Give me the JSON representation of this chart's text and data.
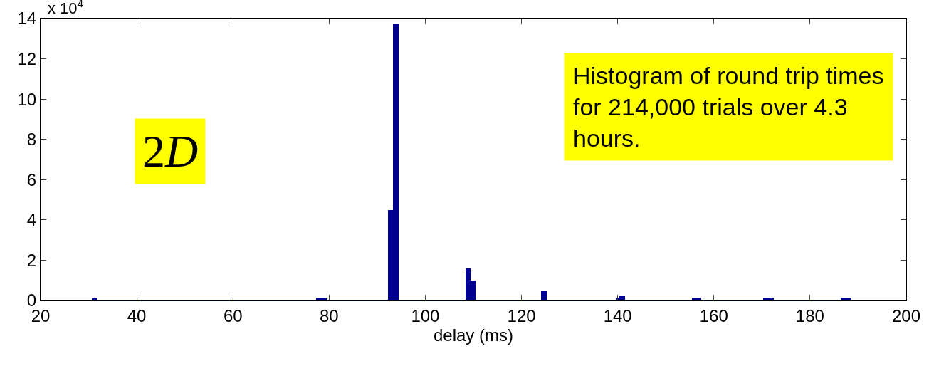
{
  "chart_data": {
    "type": "histogram",
    "xlabel": "delay (ms)",
    "color": "#000090",
    "bins": [
      30.7,
      31.7,
      77.3,
      79.5,
      92.3,
      93.3,
      94.4,
      108.3,
      109.4,
      110.5,
      124.0,
      125.3,
      139.6,
      140.3,
      141.6,
      155.4,
      157.4,
      170.3,
      172.5,
      186.4,
      188.6
    ],
    "values": [
      0.1,
      0,
      0.15,
      0,
      4.5,
      13.7,
      0,
      1.6,
      1.0,
      0,
      0.45,
      0,
      0.1,
      0.2,
      0,
      0.15,
      0,
      0.15,
      0,
      0.15
    ],
    "xlim": [
      20,
      200
    ],
    "ylim": [
      0,
      14
    ],
    "xticks": [
      20,
      40,
      60,
      80,
      100,
      120,
      140,
      160,
      180,
      200
    ],
    "yticks": [
      0,
      2,
      4,
      6,
      8,
      10,
      12,
      14
    ],
    "annotations": [
      "x 10$^{4}$",
      "2D",
      "Histogram of round trip times\nfor 214,000 trials over 4.3\nhours."
    ]
  }
}
